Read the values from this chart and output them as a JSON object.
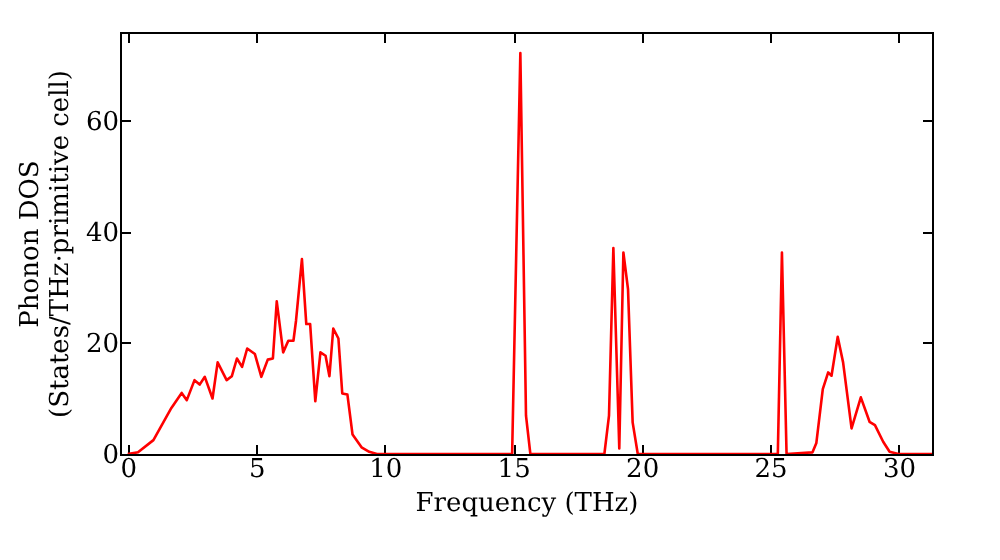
{
  "chart_data": {
    "type": "line",
    "xlabel": "Frequency (THz)",
    "ylabel": "Phonon DOS\n(States/THz·primitive cell)",
    "xlim": [
      -0.3,
      31.3
    ],
    "ylim": [
      0,
      76
    ],
    "xticks": [
      0,
      5,
      10,
      15,
      20,
      25,
      30
    ],
    "yticks": [
      0,
      20,
      40,
      60
    ],
    "grid": false,
    "series": [
      {
        "color": "#ff0000",
        "x": [
          0,
          0.4,
          1.0,
          1.7,
          2.1,
          2.3,
          2.6,
          2.8,
          3.0,
          3.3,
          3.5,
          3.85,
          4.05,
          4.25,
          4.45,
          4.65,
          4.95,
          5.2,
          5.45,
          5.65,
          5.8,
          6.05,
          6.25,
          6.45,
          6.55,
          6.78,
          6.95,
          7.1,
          7.3,
          7.5,
          7.7,
          7.85,
          8.0,
          8.2,
          8.35,
          8.55,
          8.75,
          9.1,
          9.4,
          9.7,
          14.96,
          15.28,
          15.5,
          15.67,
          18.55,
          18.73,
          18.9,
          19.13,
          19.29,
          19.47,
          19.65,
          19.85,
          25.3,
          25.46,
          25.64,
          26.65,
          26.8,
          27.05,
          27.26,
          27.39,
          27.63,
          27.84,
          28.17,
          28.53,
          28.87,
          29.08,
          29.4,
          29.65,
          30.0,
          31.3
        ],
        "values": [
          0,
          0.3,
          2.5,
          8.3,
          11,
          9.7,
          13.3,
          12.5,
          13.9,
          10,
          16.5,
          13.3,
          14,
          17.2,
          15.7,
          19,
          18,
          13.9,
          17,
          17.2,
          27.5,
          18.3,
          20.4,
          20.4,
          24,
          35.1,
          23.4,
          23.4,
          9.5,
          18.3,
          17.7,
          14,
          22.6,
          20.8,
          10.9,
          10.7,
          3.5,
          1.2,
          0.4,
          0,
          0,
          72.2,
          6.9,
          0,
          0,
          6.9,
          37.1,
          1,
          36.3,
          29.7,
          5.7,
          0,
          0,
          36.3,
          0,
          0.3,
          2,
          11.7,
          14.7,
          14.1,
          21.1,
          16.5,
          4.6,
          10.2,
          5.8,
          5.2,
          2.2,
          0.4,
          0,
          0
        ]
      }
    ]
  }
}
